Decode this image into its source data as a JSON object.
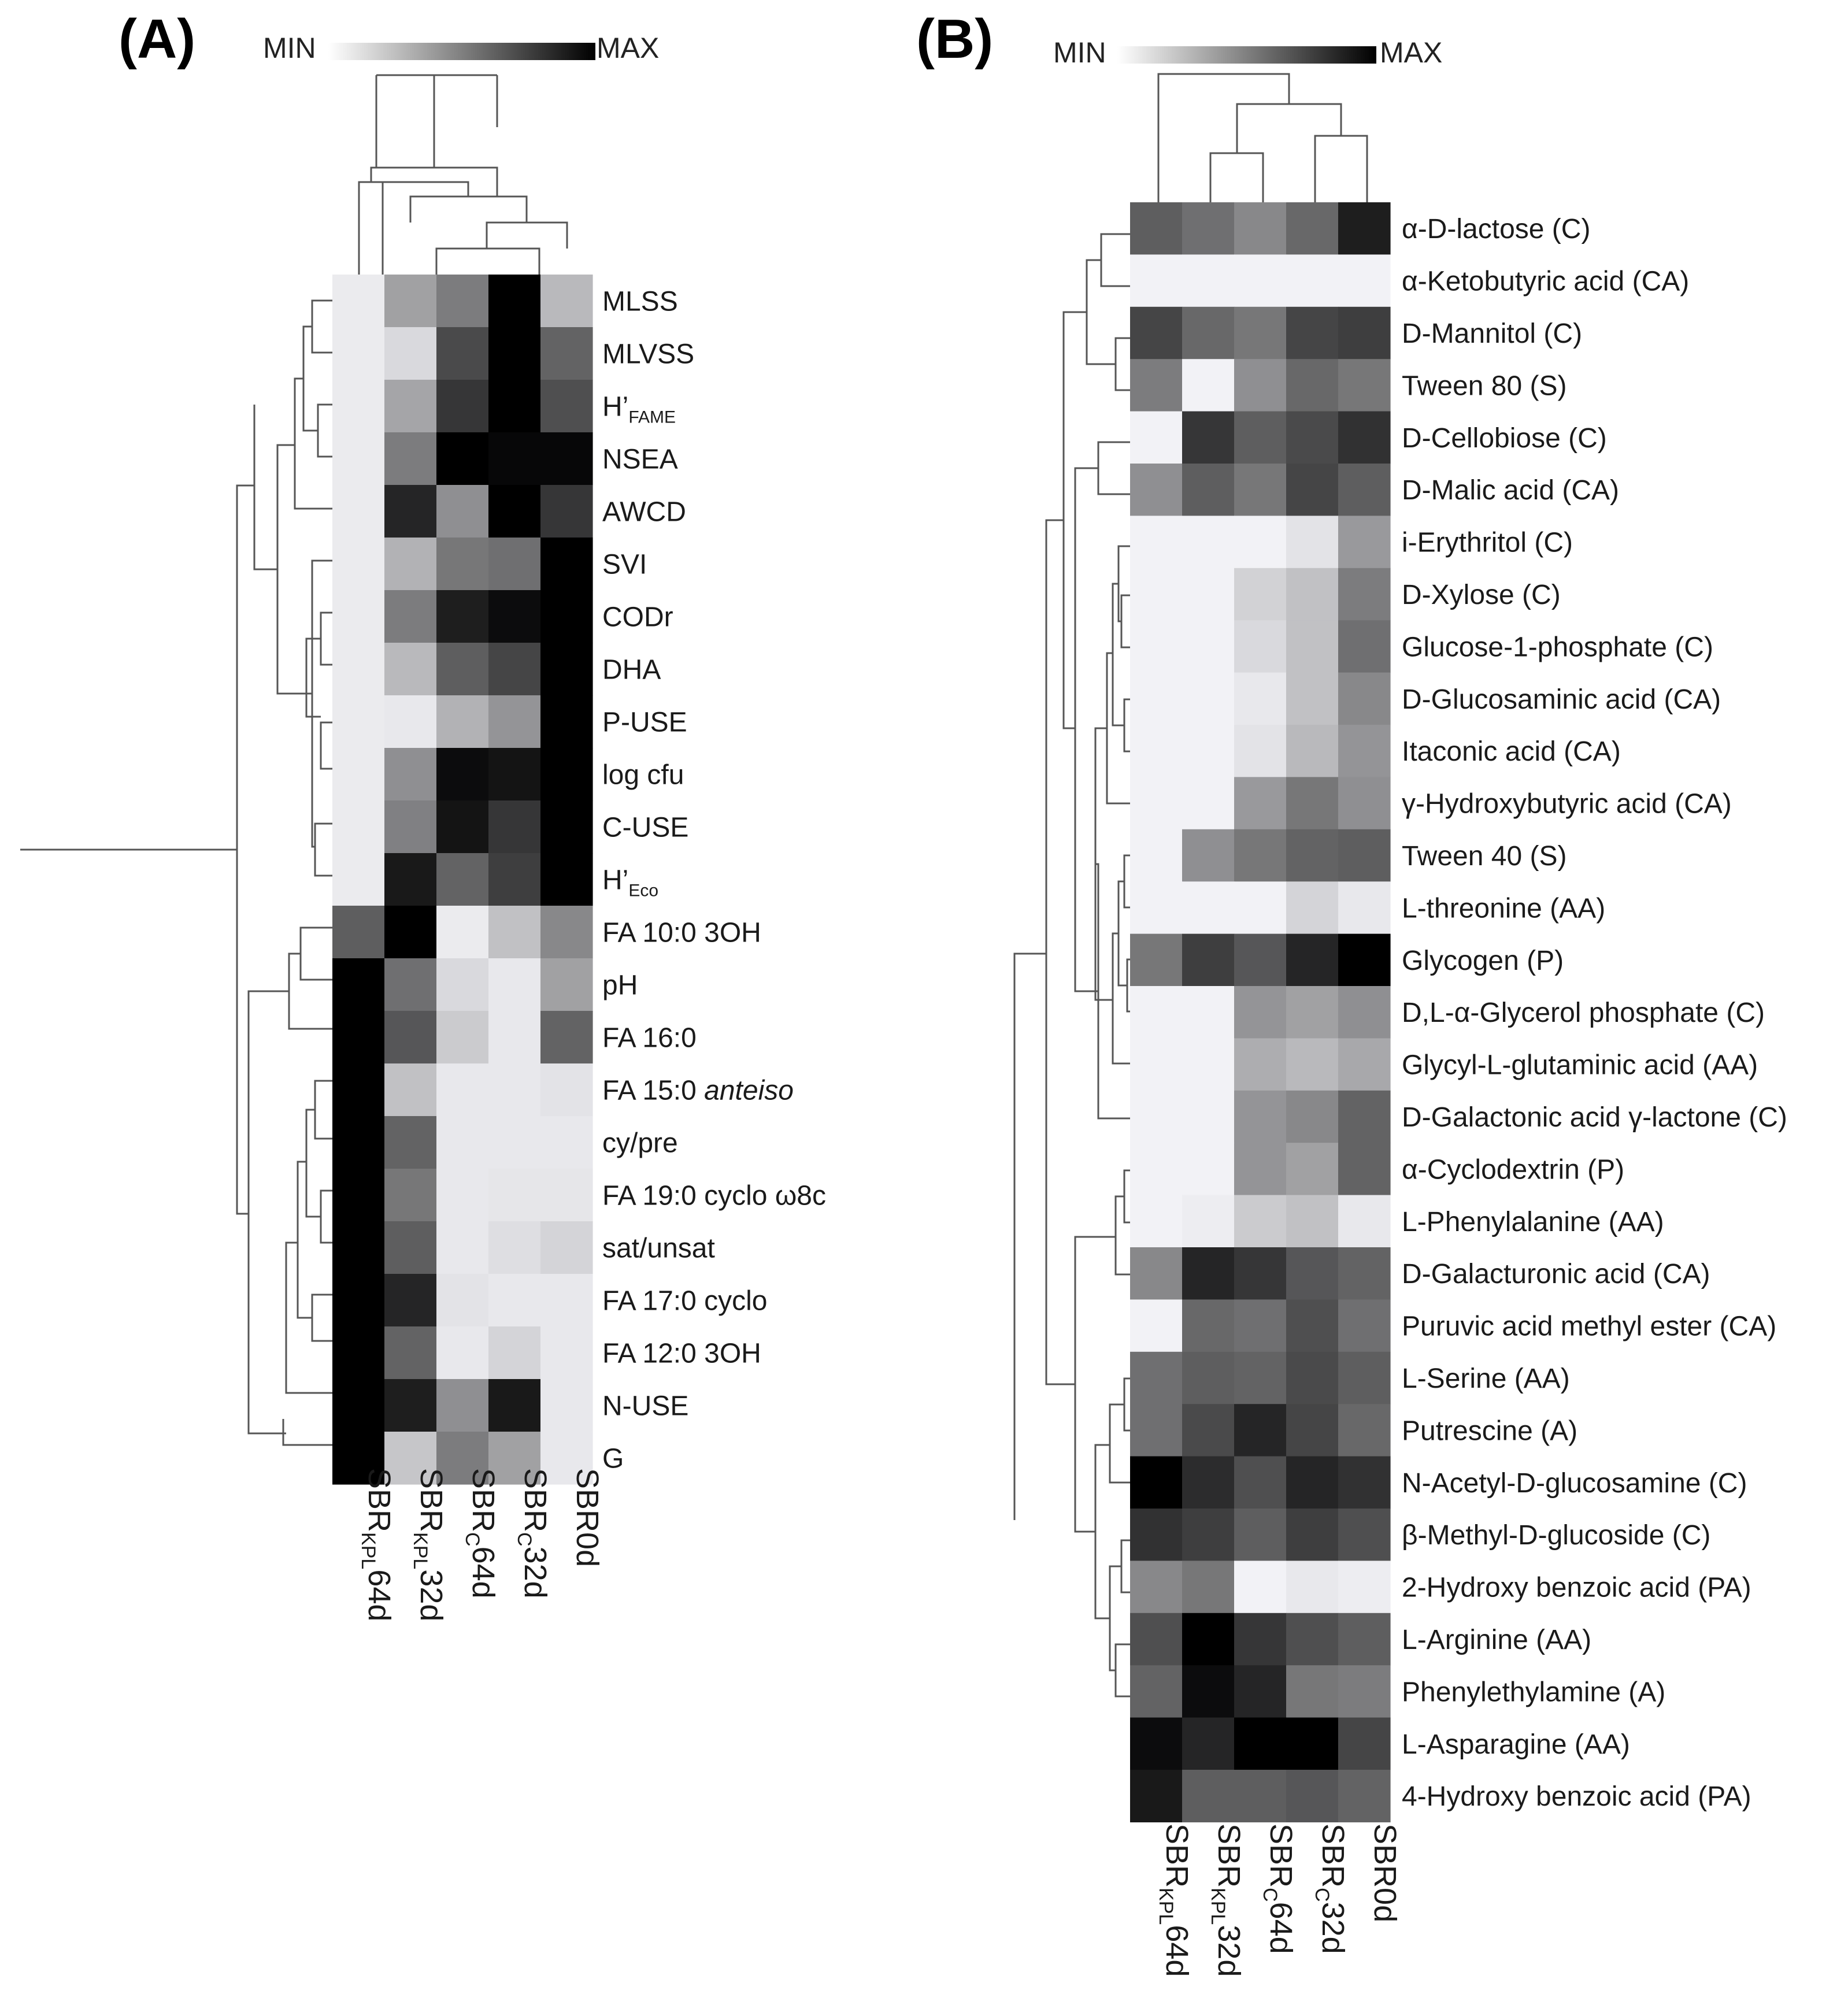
{
  "colors": {
    "min": "#f7f7fb",
    "max": "#000000",
    "dendrogram": "#555555"
  },
  "legend": {
    "min_label": "MIN",
    "max_label": "MAX"
  },
  "chart_data": [
    {
      "type": "heatmap",
      "panel_label": "(A)",
      "value_range": [
        0,
        1
      ],
      "columns": [
        {
          "base": "SBR",
          "sub": "KPL",
          "suffix": "64d"
        },
        {
          "base": "SBR",
          "sub": "KPL",
          "suffix": "32d"
        },
        {
          "base": "SBR",
          "sub": "C",
          "suffix": "64d"
        },
        {
          "base": "SBR",
          "sub": "C",
          "suffix": "32d"
        },
        {
          "base": "SBR0d",
          "sub": "",
          "suffix": ""
        }
      ],
      "rows": [
        {
          "label": "MLSS",
          "sub": "",
          "italic": "",
          "values": [
            0.05,
            0.35,
            0.5,
            1.0,
            0.25
          ]
        },
        {
          "label": "MLVSS",
          "sub": "",
          "italic": "",
          "values": [
            0.05,
            0.12,
            0.7,
            1.0,
            0.6
          ]
        },
        {
          "label": "H’",
          "sub": "FAME",
          "italic": "",
          "values": [
            0.05,
            0.33,
            0.78,
            1.0,
            0.68
          ]
        },
        {
          "label": "NSEA",
          "sub": "",
          "italic": "",
          "values": [
            0.05,
            0.5,
            1.0,
            0.97,
            0.97
          ]
        },
        {
          "label": "AWCD",
          "sub": "",
          "italic": "",
          "values": [
            0.05,
            0.85,
            0.42,
            1.0,
            0.78
          ]
        },
        {
          "label": "SVI",
          "sub": "",
          "italic": "",
          "values": [
            0.05,
            0.28,
            0.52,
            0.55,
            1.0
          ]
        },
        {
          "label": "CODr",
          "sub": "",
          "italic": "",
          "values": [
            0.05,
            0.5,
            0.88,
            0.95,
            1.0
          ]
        },
        {
          "label": "DHA",
          "sub": "",
          "italic": "",
          "values": [
            0.05,
            0.25,
            0.62,
            0.72,
            1.0
          ]
        },
        {
          "label": "P-USE",
          "sub": "",
          "italic": "",
          "values": [
            0.05,
            0.06,
            0.28,
            0.4,
            1.0
          ]
        },
        {
          "label": "log cfu",
          "sub": "",
          "italic": "",
          "values": [
            0.05,
            0.42,
            0.95,
            0.92,
            1.0
          ]
        },
        {
          "label": "C-USE",
          "sub": "",
          "italic": "",
          "values": [
            0.05,
            0.48,
            0.92,
            0.78,
            1.0
          ]
        },
        {
          "label": "H’",
          "sub": "Eco",
          "italic": "",
          "values": [
            0.05,
            0.9,
            0.6,
            0.75,
            1.0
          ]
        },
        {
          "label": "FA 10:0 3OH",
          "sub": "",
          "italic": "",
          "values": [
            0.62,
            1.0,
            0.05,
            0.22,
            0.45
          ]
        },
        {
          "label": "pH",
          "sub": "",
          "italic": "",
          "values": [
            1.0,
            0.55,
            0.12,
            0.06,
            0.35
          ]
        },
        {
          "label": "FA 16:0",
          "sub": "",
          "italic": "",
          "values": [
            1.0,
            0.65,
            0.18,
            0.06,
            0.6
          ]
        },
        {
          "label": "FA 15:0 ",
          "sub": "",
          "italic": "anteiso",
          "values": [
            1.0,
            0.22,
            0.06,
            0.06,
            0.08
          ]
        },
        {
          "label": "cy/pre",
          "sub": "",
          "italic": "",
          "values": [
            1.0,
            0.6,
            0.06,
            0.06,
            0.06
          ]
        },
        {
          "label": "FA 19:0 cyclo ω8c",
          "sub": "",
          "italic": "",
          "values": [
            1.0,
            0.52,
            0.06,
            0.07,
            0.07
          ]
        },
        {
          "label": "sat/unsat",
          "sub": "",
          "italic": "",
          "values": [
            1.0,
            0.62,
            0.06,
            0.1,
            0.14
          ]
        },
        {
          "label": "FA 17:0 cyclo",
          "sub": "",
          "italic": "",
          "values": [
            1.0,
            0.85,
            0.08,
            0.06,
            0.06
          ]
        },
        {
          "label": "FA 12:0 3OH",
          "sub": "",
          "italic": "",
          "values": [
            1.0,
            0.6,
            0.06,
            0.14,
            0.06
          ]
        },
        {
          "label": "N-USE",
          "sub": "",
          "italic": "",
          "values": [
            1.0,
            0.88,
            0.42,
            0.9,
            0.06
          ]
        },
        {
          "label": "G",
          "sub": "",
          "italic": "",
          "values": [
            1.0,
            0.2,
            0.5,
            0.35,
            0.06
          ]
        }
      ]
    },
    {
      "type": "heatmap",
      "panel_label": "(B)",
      "value_range": [
        0,
        1
      ],
      "columns": [
        {
          "base": "SBR",
          "sub": "KPL",
          "suffix": "64d"
        },
        {
          "base": "SBR",
          "sub": "KPL",
          "suffix": "32d"
        },
        {
          "base": "SBR",
          "sub": "C",
          "suffix": "64d"
        },
        {
          "base": "SBR",
          "sub": "C",
          "suffix": "32d"
        },
        {
          "base": "SBR0d",
          "sub": "",
          "suffix": ""
        }
      ],
      "rows": [
        {
          "label": "α-D-lactose (C)",
          "values": [
            0.62,
            0.55,
            0.45,
            0.58,
            0.88
          ]
        },
        {
          "label": "α-Ketobutyric acid (CA)",
          "values": [
            0.02,
            0.02,
            0.02,
            0.02,
            0.02
          ]
        },
        {
          "label": "D-Mannitol (C)",
          "values": [
            0.72,
            0.58,
            0.52,
            0.72,
            0.75
          ]
        },
        {
          "label": "Tween 80 (S)",
          "values": [
            0.5,
            0.02,
            0.42,
            0.58,
            0.52
          ]
        },
        {
          "label": "D-Cellobiose (C)",
          "values": [
            0.02,
            0.78,
            0.62,
            0.7,
            0.8
          ]
        },
        {
          "label": "D-Malic acid (CA)",
          "values": [
            0.42,
            0.62,
            0.52,
            0.72,
            0.62
          ]
        },
        {
          "label": "i-Erythritol (C)",
          "values": [
            0.02,
            0.02,
            0.02,
            0.08,
            0.38
          ]
        },
        {
          "label": "D-Xylose (C)",
          "values": [
            0.02,
            0.02,
            0.15,
            0.22,
            0.5
          ]
        },
        {
          "label": "Glucose-1-phosphate (C)",
          "values": [
            0.02,
            0.02,
            0.12,
            0.22,
            0.55
          ]
        },
        {
          "label": "D-Glucosaminic acid (CA)",
          "values": [
            0.02,
            0.02,
            0.06,
            0.22,
            0.45
          ]
        },
        {
          "label": "Itaconic acid (CA)",
          "values": [
            0.02,
            0.02,
            0.08,
            0.25,
            0.4
          ]
        },
        {
          "label": "γ-Hydroxybutyric acid (CA)",
          "values": [
            0.02,
            0.02,
            0.38,
            0.52,
            0.42
          ]
        },
        {
          "label": "Tween 40 (S)",
          "values": [
            0.02,
            0.42,
            0.52,
            0.6,
            0.62
          ]
        },
        {
          "label": "L-threonine (AA)",
          "values": [
            0.02,
            0.02,
            0.02,
            0.14,
            0.06
          ]
        },
        {
          "label": "Glycogen (P)",
          "values": [
            0.52,
            0.75,
            0.65,
            0.85,
            1.0
          ]
        },
        {
          "label": "D,L-α-Glycerol phosphate (C)",
          "values": [
            0.02,
            0.02,
            0.4,
            0.35,
            0.42
          ]
        },
        {
          "label": "Glycyl-L-glutaminic acid (AA)",
          "values": [
            0.02,
            0.02,
            0.3,
            0.25,
            0.32
          ]
        },
        {
          "label": "D-Galactonic acid γ-lactone (C)",
          "values": [
            0.02,
            0.02,
            0.4,
            0.45,
            0.6
          ]
        },
        {
          "label": "α-Cyclodextrin (P)",
          "values": [
            0.02,
            0.02,
            0.4,
            0.35,
            0.6
          ]
        },
        {
          "label": "L-Phenylalanine (AA)",
          "values": [
            0.02,
            0.04,
            0.18,
            0.22,
            0.06
          ]
        },
        {
          "label": "D-Galacturonic acid (CA)",
          "values": [
            0.45,
            0.85,
            0.78,
            0.65,
            0.6
          ]
        },
        {
          "label": "Puruvic acid methyl ester (CA)",
          "values": [
            0.02,
            0.58,
            0.55,
            0.68,
            0.55
          ]
        },
        {
          "label": "L-Serine (AA)",
          "values": [
            0.55,
            0.62,
            0.6,
            0.7,
            0.62
          ]
        },
        {
          "label": "Putrescine (A)",
          "values": [
            0.55,
            0.7,
            0.85,
            0.72,
            0.58
          ]
        },
        {
          "label": "N-Acetyl-D-glucosamine (C)",
          "values": [
            1.0,
            0.82,
            0.68,
            0.85,
            0.8
          ]
        },
        {
          "label": "β-Methyl-D-glucoside (C)",
          "values": [
            0.8,
            0.75,
            0.62,
            0.75,
            0.68
          ]
        },
        {
          "label": "2-Hydroxy benzoic acid (PA)",
          "values": [
            0.45,
            0.52,
            0.02,
            0.06,
            0.04
          ]
        },
        {
          "label": "L-Arginine (AA)",
          "values": [
            0.68,
            1.0,
            0.78,
            0.68,
            0.62
          ]
        },
        {
          "label": "Phenylethylamine (A)",
          "values": [
            0.6,
            0.95,
            0.85,
            0.52,
            0.5
          ]
        },
        {
          "label": "L-Asparagine (AA)",
          "values": [
            0.95,
            0.85,
            1.0,
            1.0,
            0.72
          ]
        },
        {
          "label": "4-Hydroxy benzoic acid (PA)",
          "values": [
            0.9,
            0.62,
            0.62,
            0.65,
            0.6
          ]
        }
      ]
    }
  ]
}
